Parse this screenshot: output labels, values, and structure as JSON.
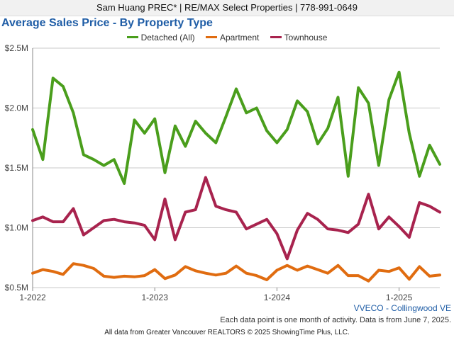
{
  "header": {
    "banner": "Sam Huang PREC* | RE/MAX Select Properties | 778-991-0649"
  },
  "chart_data": {
    "type": "line",
    "title": "Average Sales Price - By Property Type",
    "xlabel": "",
    "ylabel": "",
    "x_start": "2022-01",
    "x_end": "2025-05",
    "x_ticks": [
      {
        "label": "1-2022",
        "index": 0
      },
      {
        "label": "1-2023",
        "index": 12
      },
      {
        "label": "1-2024",
        "index": 24
      },
      {
        "label": "1-2025",
        "index": 36
      }
    ],
    "ylim": [
      500000,
      2500000
    ],
    "y_ticks": [
      {
        "label": "$0.5M",
        "value": 500000
      },
      {
        "label": "$1.0M",
        "value": 1000000
      },
      {
        "label": "$1.5M",
        "value": 1500000
      },
      {
        "label": "$2.0M",
        "value": 2000000
      },
      {
        "label": "$2.5M",
        "value": 2500000
      }
    ],
    "grid": true,
    "legend_position": "top-center",
    "series": [
      {
        "name": "Detached (All)",
        "color": "#4a9e1c",
        "values": [
          1820000,
          1570000,
          2250000,
          2180000,
          1960000,
          1610000,
          1570000,
          1520000,
          1570000,
          1370000,
          1900000,
          1790000,
          1910000,
          1460000,
          1850000,
          1680000,
          1890000,
          1790000,
          1710000,
          1930000,
          2160000,
          1960000,
          2000000,
          1810000,
          1710000,
          1820000,
          2060000,
          1970000,
          1700000,
          1830000,
          2090000,
          1430000,
          2170000,
          2040000,
          1520000,
          2070000,
          2300000,
          1790000,
          1430000,
          1690000,
          1530000
        ]
      },
      {
        "name": "Apartment",
        "color": "#e06c10",
        "values": [
          620000,
          650000,
          635000,
          610000,
          700000,
          685000,
          660000,
          595000,
          585000,
          595000,
          590000,
          600000,
          650000,
          575000,
          605000,
          675000,
          640000,
          620000,
          605000,
          620000,
          680000,
          620000,
          600000,
          565000,
          645000,
          685000,
          645000,
          680000,
          650000,
          620000,
          685000,
          600000,
          600000,
          555000,
          645000,
          635000,
          665000,
          570000,
          675000,
          595000,
          605000
        ]
      },
      {
        "name": "Townhouse",
        "color": "#a8234e",
        "values": [
          1060000,
          1090000,
          1050000,
          1050000,
          1160000,
          940000,
          1000000,
          1060000,
          1070000,
          1050000,
          1040000,
          1020000,
          900000,
          1240000,
          900000,
          1130000,
          1150000,
          1420000,
          1180000,
          1150000,
          1130000,
          990000,
          1030000,
          1070000,
          950000,
          740000,
          980000,
          1120000,
          1070000,
          990000,
          980000,
          960000,
          1030000,
          1280000,
          990000,
          1090000,
          1010000,
          920000,
          1210000,
          1180000,
          1130000
        ]
      }
    ]
  },
  "footer": {
    "region": "VVECO - Collingwood VE",
    "note": "Each data point is one month of activity. Data is from June 7, 2025.",
    "copyright": "All data from Greater Vancouver REALTORS © 2025 ShowingTime Plus, LLC."
  }
}
